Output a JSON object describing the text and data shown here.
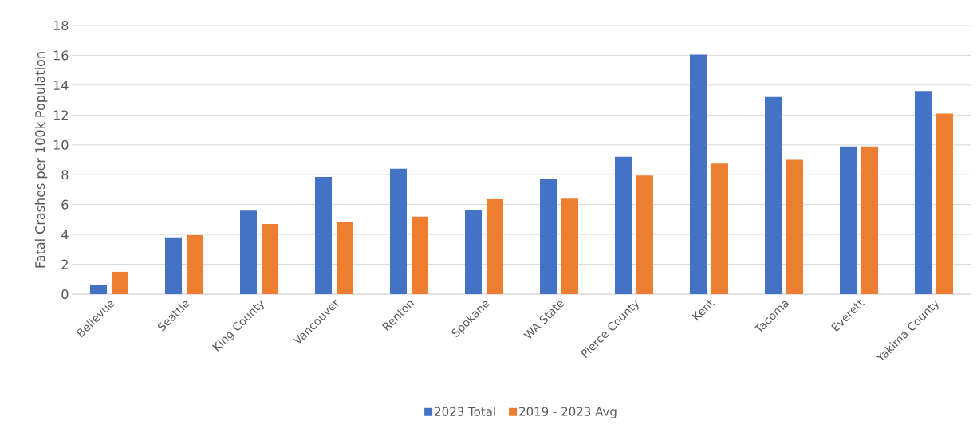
{
  "chart_data": {
    "type": "bar",
    "ylabel": "Fatal Crashes per 100k Population",
    "categories": [
      "Bellevue",
      "Seattle",
      "King County",
      "Vancouver",
      "Renton",
      "Spokane",
      "WA State",
      "Pierce County",
      "Kent",
      "Tacoma",
      "Everett",
      "Yakima County"
    ],
    "series": [
      {
        "name": "2023 Total",
        "color": "#4472c4",
        "values": [
          0.62,
          3.8,
          5.6,
          7.85,
          8.4,
          5.65,
          7.7,
          9.2,
          16.05,
          13.2,
          9.9,
          13.6
        ]
      },
      {
        "name": "2019 - 2023 Avg",
        "color": "#ed7d31",
        "values": [
          1.5,
          3.95,
          4.7,
          4.8,
          5.2,
          6.35,
          6.4,
          7.95,
          8.75,
          9.0,
          9.9,
          12.1
        ]
      }
    ],
    "ylim": [
      0,
      18
    ],
    "yticks": [
      0,
      2,
      4,
      6,
      8,
      10,
      12,
      14,
      16,
      18
    ],
    "grid": "y",
    "legend": "bottom"
  }
}
